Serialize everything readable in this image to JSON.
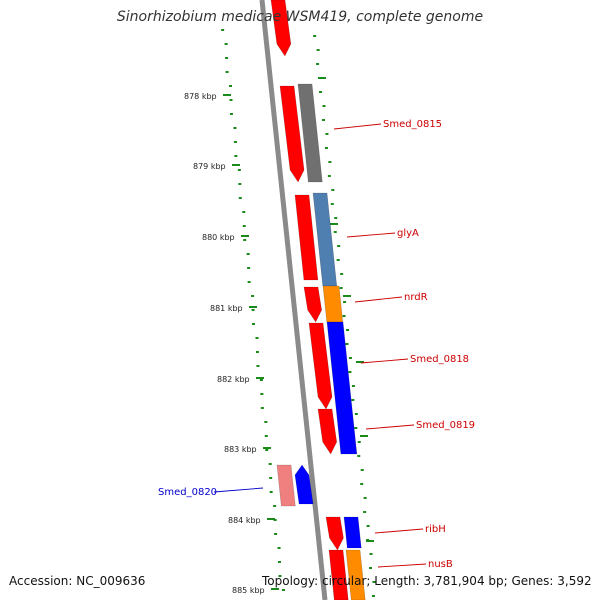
{
  "title": "Sinorhizobium medicae WSM419, complete genome",
  "footer": {
    "accession": "Accession: NC_009636",
    "stats": "Topology: circular; Length: 3,781,904 bp; Genes: 3,592"
  },
  "colors": {
    "backbone": "#8a8a8a",
    "gc_ticks": "#1a8a1a",
    "label_forward": "#cc0000",
    "label_reverse": "#0000cc",
    "cds": "#ff0000",
    "cds_pale": "#f08080",
    "gene_grey": "#707070",
    "gene_steel": "#4f7fb0",
    "gene_orange": "#ff8c00",
    "gene_blue": "#0000ff"
  },
  "kbp_labels": [
    "878 kbp",
    "879 kbp",
    "880 kbp",
    "881 kbp",
    "882 kbp",
    "883 kbp",
    "884 kbp",
    "885 kbp"
  ],
  "genes": [
    {
      "name": "Smed_0815",
      "strand": "forward",
      "color_key": "gene_grey"
    },
    {
      "name": "glyA",
      "strand": "forward",
      "color_key": "gene_steel"
    },
    {
      "name": "nrdR",
      "strand": "forward",
      "color_key": "gene_orange"
    },
    {
      "name": "Smed_0818",
      "strand": "forward",
      "color_key": "gene_blue"
    },
    {
      "name": "Smed_0819",
      "strand": "forward",
      "color_key": "gene_blue"
    },
    {
      "name": "Smed_0820",
      "strand": "reverse",
      "color_key": "gene_blue"
    },
    {
      "name": "ribH",
      "strand": "forward",
      "color_key": "gene_blue"
    },
    {
      "name": "nusB",
      "strand": "forward",
      "color_key": "gene_orange"
    }
  ]
}
